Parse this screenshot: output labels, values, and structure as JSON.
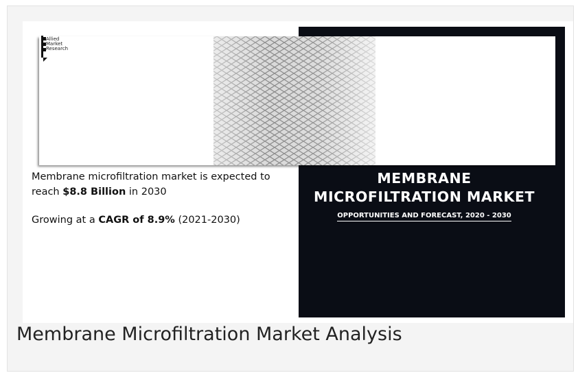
{
  "logo": {
    "lines": [
      "Allied",
      "Market",
      "Research"
    ]
  },
  "summary": {
    "line1_prefix": "Membrane microfiltration market is expected to reach ",
    "line1_bold": "$8.8 Billion",
    "line1_suffix": " in 2030",
    "line2_prefix": "Growing at a ",
    "line2_bold": "CAGR of 8.9%",
    "line2_suffix": " (2021-2030)"
  },
  "banner": {
    "title_line1": "MEMBRANE",
    "title_line2": "MICROFILTRATION MARKET",
    "subtitle": "OPPORTUNITIES AND FORECAST, 2020 - 2030"
  },
  "caption": "Membrane Microfiltration Market Analysis"
}
